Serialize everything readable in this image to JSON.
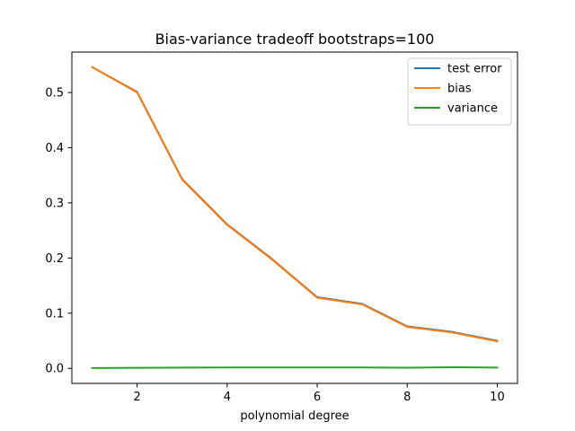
{
  "chart_data": {
    "type": "line",
    "title": "Bias-variance tradeoff bootstraps=100",
    "xlabel": "polynomial degree",
    "ylabel": "",
    "x": [
      1,
      2,
      3,
      4,
      5,
      6,
      7,
      8,
      9,
      10
    ],
    "xlim": [
      0.55,
      10.45
    ],
    "ylim": [
      -0.0273,
      0.5733
    ],
    "xticks": [
      2,
      4,
      6,
      8,
      10
    ],
    "yticks": [
      0.0,
      0.1,
      0.2,
      0.3,
      0.4,
      0.5
    ],
    "ytick_labels": [
      "0.0",
      "0.1",
      "0.2",
      "0.3",
      "0.4",
      "0.5"
    ],
    "grid": false,
    "legend_position": "top-right",
    "series": [
      {
        "name": "test error",
        "color": "#1f77b4",
        "values": [
          0.546,
          0.501,
          0.343,
          0.261,
          0.198,
          0.129,
          0.117,
          0.076,
          0.066,
          0.05
        ]
      },
      {
        "name": "bias",
        "color": "#ff7f0e",
        "values": [
          0.546,
          0.5,
          0.342,
          0.26,
          0.197,
          0.128,
          0.116,
          0.075,
          0.065,
          0.049
        ]
      },
      {
        "name": "variance",
        "color": "#2ca02c",
        "values": [
          0.0005,
          0.001,
          0.0013,
          0.0015,
          0.0016,
          0.0015,
          0.0015,
          0.0012,
          0.002,
          0.0014
        ]
      }
    ]
  }
}
